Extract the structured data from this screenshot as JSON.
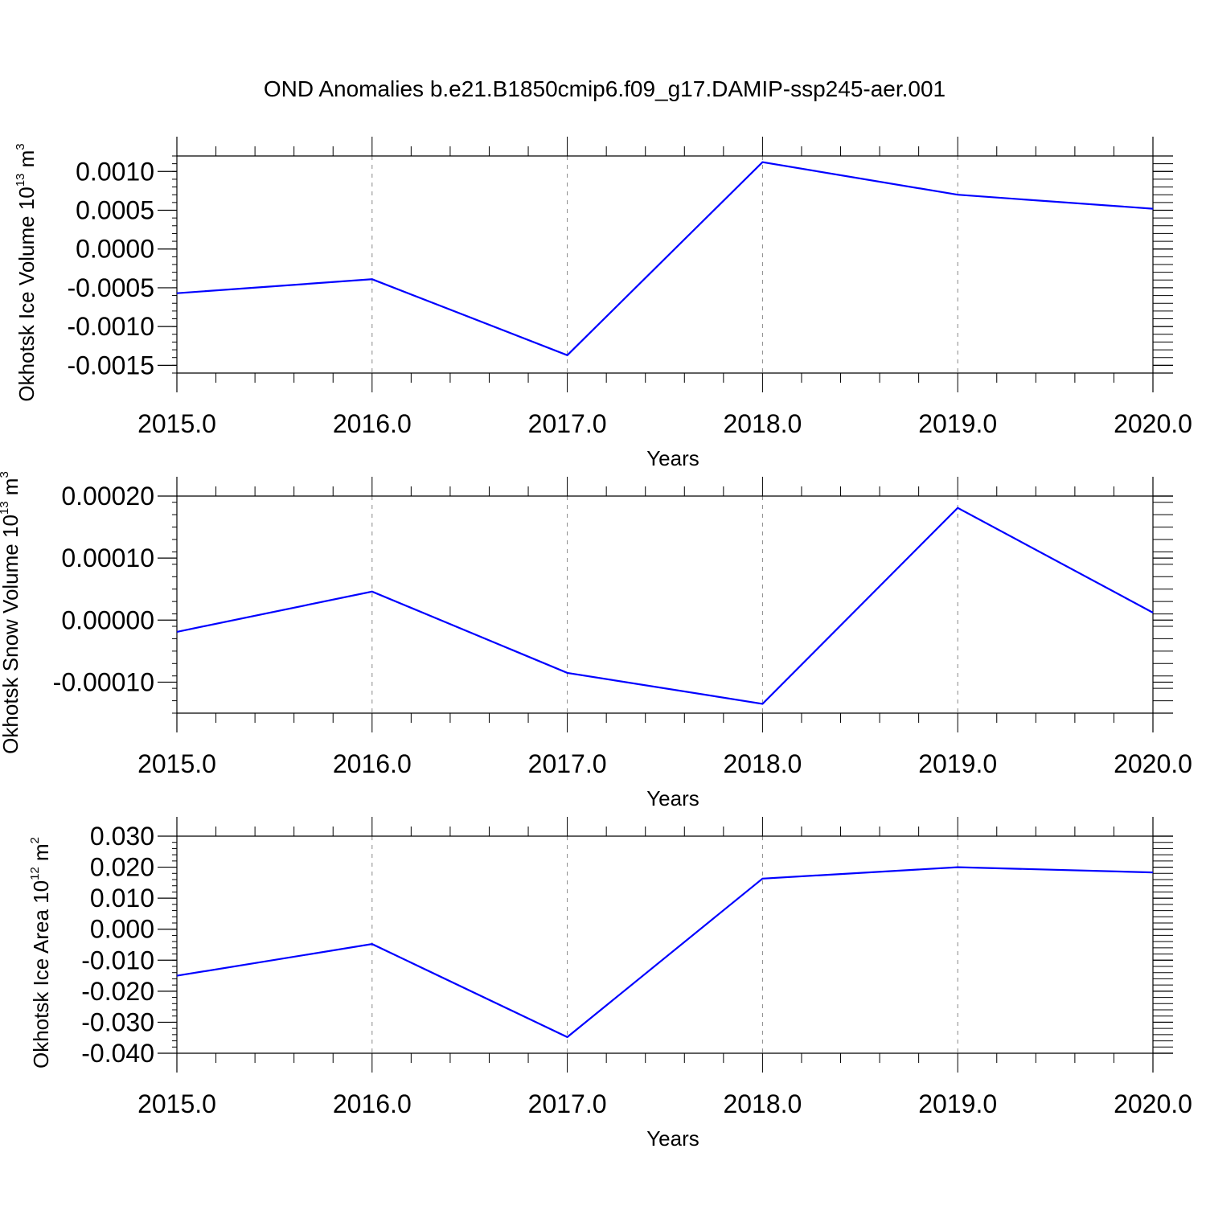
{
  "title": "OND Anomalies b.e21.B1850cmip6.f09_g17.DAMIP-ssp245-aer.001",
  "colors": {
    "line": "#0000ff",
    "axis": "#000000",
    "grid": "#888888"
  },
  "chart_data": [
    {
      "type": "line",
      "ylabel": {
        "text": "Okhotsk Ice Volume 10",
        "exp": "13",
        "unit": " m",
        "unit_exp": "3"
      },
      "xlabel": "Years",
      "x": [
        2015,
        2016,
        2017,
        2018,
        2019,
        2020
      ],
      "values": [
        -0.00057,
        -0.00039,
        -0.00137,
        0.00112,
        0.0007,
        0.00052
      ],
      "xlim": [
        2015,
        2020
      ],
      "ylim": [
        -0.0016,
        0.0012
      ],
      "yticks": [
        -0.0015,
        -0.001,
        -0.0005,
        0.0,
        0.0005,
        0.001
      ],
      "yticklabels": [
        "-0.0015",
        "-0.0010",
        "-0.0005",
        "0.0000",
        "0.0005",
        "0.0010"
      ],
      "xticks": [
        2015,
        2016,
        2017,
        2018,
        2019,
        2020
      ],
      "xticklabels": [
        "2015.0",
        "2016.0",
        "2017.0",
        "2018.0",
        "2019.0",
        "2020.0"
      ],
      "grid": "vertical-dashed"
    },
    {
      "type": "line",
      "ylabel": {
        "text": "Okhotsk Snow Volume 10",
        "exp": "13",
        "unit": " m",
        "unit_exp": "3"
      },
      "xlabel": "Years",
      "x": [
        2015,
        2016,
        2017,
        2018,
        2019,
        2020
      ],
      "values": [
        -1.9e-05,
        4.6e-05,
        -8.5e-05,
        -0.000135,
        0.000181,
        1.2e-05
      ],
      "xlim": [
        2015,
        2020
      ],
      "ylim": [
        -0.00015,
        0.0002
      ],
      "yticks": [
        -0.0001,
        0.0,
        0.0001,
        0.0002
      ],
      "yticklabels": [
        "-0.00010",
        "0.00000",
        "0.00010",
        "0.00020"
      ],
      "xticks": [
        2015,
        2016,
        2017,
        2018,
        2019,
        2020
      ],
      "xticklabels": [
        "2015.0",
        "2016.0",
        "2017.0",
        "2018.0",
        "2019.0",
        "2020.0"
      ],
      "grid": "vertical-dashed"
    },
    {
      "type": "line",
      "ylabel": {
        "text": "Okhotsk Ice Area 10",
        "exp": "12",
        "unit": " m",
        "unit_exp": "2"
      },
      "xlabel": "Years",
      "x": [
        2015,
        2016,
        2017,
        2018,
        2019,
        2020
      ],
      "values": [
        -0.015,
        -0.0048,
        -0.0348,
        0.0163,
        0.02,
        0.0183
      ],
      "xlim": [
        2015,
        2020
      ],
      "ylim": [
        -0.04,
        0.03
      ],
      "yticks": [
        -0.04,
        -0.03,
        -0.02,
        -0.01,
        0.0,
        0.01,
        0.02,
        0.03
      ],
      "yticklabels": [
        "-0.040",
        "-0.030",
        "-0.020",
        "-0.010",
        "0.000",
        "0.010",
        "0.020",
        "0.030"
      ],
      "xticks": [
        2015,
        2016,
        2017,
        2018,
        2019,
        2020
      ],
      "xticklabels": [
        "2015.0",
        "2016.0",
        "2017.0",
        "2018.0",
        "2019.0",
        "2020.0"
      ],
      "grid": "vertical-dashed"
    }
  ]
}
